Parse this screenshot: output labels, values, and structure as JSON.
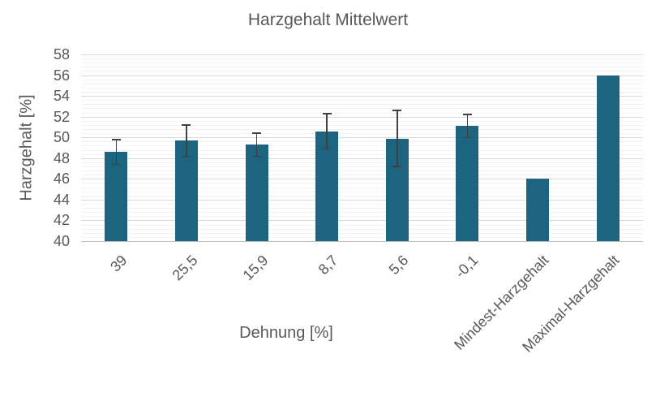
{
  "chart_data": {
    "type": "bar",
    "title": "Harzgehalt Mittelwert",
    "xlabel": "Dehnung [%]",
    "ylabel": "Harzgehalt [%]",
    "categories": [
      "39",
      "25,5",
      "15,9",
      "8,7",
      "5,6",
      "-0,1",
      "Mindest-Harzgehalt",
      "Maximal-Harzgehalt"
    ],
    "series": [
      {
        "name": "Harzgehalt Mittelwert",
        "values": [
          48.6,
          49.7,
          49.3,
          50.6,
          49.9,
          51.1,
          46.0,
          56.0
        ],
        "error_bars": [
          1.2,
          1.5,
          1.1,
          1.7,
          2.7,
          1.1,
          null,
          null
        ]
      }
    ],
    "ylim": [
      40,
      58
    ],
    "y_major_step": 2,
    "y_minor_step": 0.4,
    "y_tick_labels": [
      "40",
      "42",
      "44",
      "46",
      "48",
      "50",
      "52",
      "54",
      "56",
      "58"
    ],
    "grid": "horizontal major and minor gridlines, no vertical gridlines",
    "legend": "none",
    "colors": {
      "bar_fill": "#1d6480",
      "error_bar": "#404040",
      "text": "#595959",
      "major_gridline": "#d9d9d9",
      "minor_gridline": "#f2f2f2",
      "axis_line": "#bfbfbf",
      "background": "#ffffff"
    }
  }
}
